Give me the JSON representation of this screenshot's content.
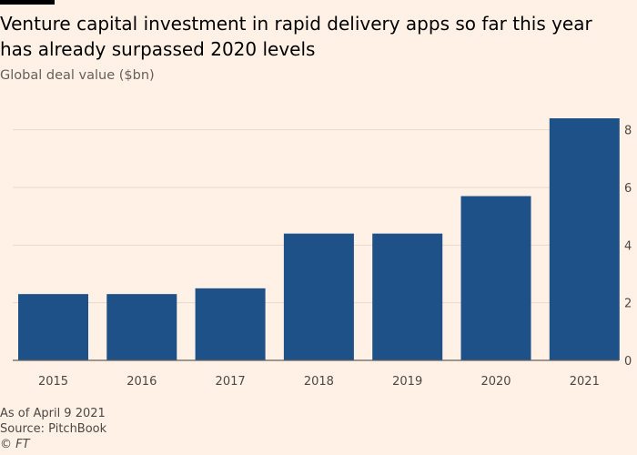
{
  "header": {
    "title": "Venture capital investment in rapid delivery apps so far this year has already surpassed 2020 levels",
    "subtitle": "Global deal value ($bn)"
  },
  "footer": {
    "note": "As of April 9 2021",
    "source": "Source: PitchBook",
    "credit": "© FT"
  },
  "chart_data": {
    "type": "bar",
    "title": "Venture capital investment in rapid delivery apps so far this year has already surpassed 2020 levels",
    "subtitle": "Global deal value ($bn)",
    "xlabel": "",
    "ylabel": "",
    "categories": [
      "2015",
      "2016",
      "2017",
      "2018",
      "2019",
      "2020",
      "2021"
    ],
    "values": [
      2.3,
      2.3,
      2.5,
      4.4,
      4.4,
      5.7,
      8.4
    ],
    "ylim": [
      0,
      8.4
    ],
    "yticks": [
      0,
      2,
      4,
      6,
      8
    ],
    "y_axis_side": "right",
    "grid": true,
    "legend": "none",
    "colors": {
      "bar": "#1f5189",
      "grid": "#e7d9cc",
      "baseline": "#66605c",
      "tick_text": "#4d4845"
    }
  }
}
